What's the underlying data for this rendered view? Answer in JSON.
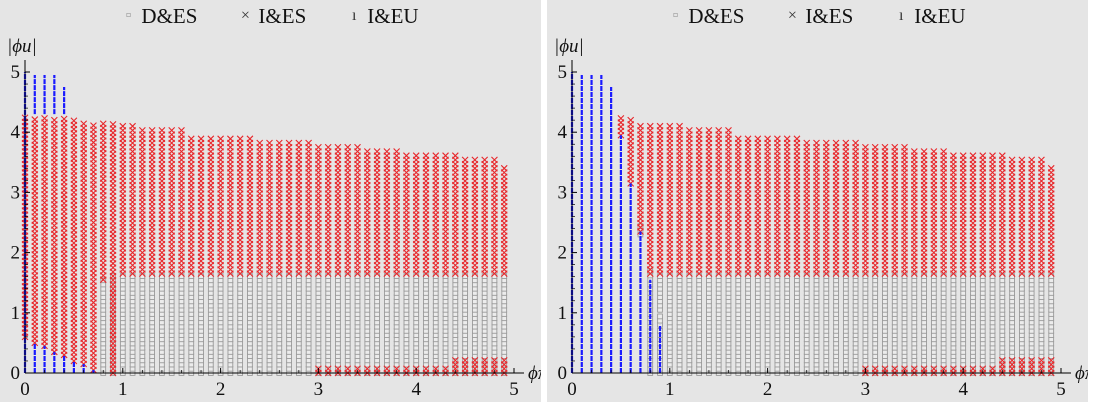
{
  "legend": {
    "items": [
      {
        "label": "D&ES",
        "symbol": "square",
        "color": "#9a9a9a"
      },
      {
        "label": "I&ES",
        "symbol": "cross",
        "color": "#e8262a"
      },
      {
        "label": "I&EU",
        "symbol": "vbar",
        "color": "#1a1aff"
      }
    ]
  },
  "axes": {
    "ylabel": "|ϕu|",
    "xlabel": "ϕπ",
    "xticks": [
      "0",
      "1",
      "2",
      "3",
      "4",
      "5"
    ],
    "yticks": [
      "0",
      "1",
      "2",
      "3",
      "4",
      "5"
    ]
  },
  "colors": {
    "background": "#e5e5e5",
    "DES": "#9a9a9a",
    "IES": "#e8262a",
    "IEU": "#1a1aff"
  },
  "chart_data": [
    {
      "type": "scatter",
      "xlabel": "ϕπ",
      "ylabel": "|ϕu|",
      "xlim": [
        0,
        5
      ],
      "ylim": [
        0,
        5
      ],
      "grid": false,
      "legend_position": "top",
      "x_grid": [
        0,
        0.1,
        0.2,
        0.3,
        0.4,
        0.5,
        0.6,
        0.7,
        0.8,
        0.9,
        1.0,
        1.1,
        1.2,
        1.3,
        1.4,
        1.5,
        1.6,
        1.7,
        1.8,
        1.9,
        2.0,
        2.1,
        2.2,
        2.3,
        2.4,
        2.5,
        2.6,
        2.7,
        2.8,
        2.9,
        3.0,
        3.1,
        3.2,
        3.3,
        3.4,
        3.5,
        3.6,
        3.7,
        3.8,
        3.9,
        4.0,
        4.1,
        4.2,
        4.3,
        4.4,
        4.5,
        4.6,
        4.7,
        4.8,
        4.9
      ],
      "series": [
        {
          "name": "D&ES",
          "symbol": "square",
          "columns": [
            {
              "x": 0.8,
              "y": [
                0,
                1.55
              ]
            },
            {
              "x": 0.9,
              "y": [
                0,
                1.65
              ]
            },
            {
              "x_from": 1.0,
              "x_to": 4.9,
              "y": [
                0,
                1.65
              ]
            }
          ]
        },
        {
          "name": "I&ES",
          "symbol": "cross",
          "columns": [
            {
              "x": 0.0,
              "y": [
                0.6,
                4.3
              ]
            },
            {
              "x": 0.1,
              "y": [
                0.5,
                4.25
              ]
            },
            {
              "x": 0.2,
              "y": [
                0.45,
                4.25
              ]
            },
            {
              "x": 0.3,
              "y": [
                0.35,
                4.25
              ]
            },
            {
              "x": 0.4,
              "y": [
                0.3,
                4.25
              ]
            },
            {
              "x": 0.5,
              "y": [
                0.2,
                4.2
              ]
            },
            {
              "x": 0.6,
              "y": [
                0.15,
                4.2
              ]
            },
            {
              "x": 0.7,
              "y": [
                0.05,
                4.15
              ]
            },
            {
              "x": 0.8,
              "y": [
                1.55,
                4.15
              ]
            },
            {
              "x": 0.9,
              "y": [
                0.0,
                4.15
              ]
            },
            {
              "x_from": 1.0,
              "x_to": 1.1,
              "y": [
                1.65,
                4.15
              ]
            },
            {
              "x_from": 1.2,
              "x_to": 1.6,
              "y": [
                1.65,
                4.05
              ]
            },
            {
              "x_from": 1.7,
              "x_to": 2.3,
              "y": [
                1.65,
                3.95
              ]
            },
            {
              "x_from": 2.4,
              "x_to": 2.9,
              "y": [
                1.65,
                3.85
              ]
            },
            {
              "x_from": 3.0,
              "x_to": 3.4,
              "y": [
                1.65,
                3.75
              ]
            },
            {
              "x_from": 3.5,
              "x_to": 3.8,
              "y": [
                1.65,
                3.7
              ]
            },
            {
              "x_from": 3.9,
              "x_to": 4.4,
              "y": [
                1.65,
                3.65
              ]
            },
            {
              "x_from": 4.5,
              "x_to": 4.8,
              "y": [
                1.65,
                3.55
              ]
            },
            {
              "x": 4.9,
              "y": [
                1.65,
                3.45
              ]
            },
            {
              "x_from": 3.0,
              "x_to": 4.3,
              "y": [
                0.0,
                0.1
              ]
            },
            {
              "x_from": 4.4,
              "x_to": 4.9,
              "y": [
                0.0,
                0.25
              ]
            }
          ]
        },
        {
          "name": "I&EU",
          "symbol": "vbar",
          "columns": [
            {
              "x": 0.0,
              "y": [
                0.0,
                5.0
              ]
            },
            {
              "x": 0.1,
              "y": [
                0.0,
                0.5
              ]
            },
            {
              "x": 0.1,
              "y": [
                4.3,
                4.95
              ]
            },
            {
              "x": 0.2,
              "y": [
                0.0,
                0.45
              ]
            },
            {
              "x": 0.2,
              "y": [
                4.3,
                4.95
              ]
            },
            {
              "x": 0.3,
              "y": [
                0.0,
                0.35
              ]
            },
            {
              "x": 0.3,
              "y": [
                4.3,
                4.95
              ]
            },
            {
              "x": 0.4,
              "y": [
                0.0,
                0.3
              ]
            },
            {
              "x": 0.4,
              "y": [
                4.3,
                4.75
              ]
            },
            {
              "x": 0.5,
              "y": [
                0.0,
                0.2
              ]
            },
            {
              "x": 0.6,
              "y": [
                0.0,
                0.15
              ]
            },
            {
              "x": 0.7,
              "y": [
                0.0,
                0.05
              ]
            }
          ]
        }
      ]
    },
    {
      "type": "scatter",
      "xlabel": "ϕπ",
      "ylabel": "|ϕu|",
      "xlim": [
        0,
        5
      ],
      "ylim": [
        0,
        5
      ],
      "grid": false,
      "legend_position": "top",
      "x_grid": [
        0,
        0.1,
        0.2,
        0.3,
        0.4,
        0.5,
        0.6,
        0.7,
        0.8,
        0.9,
        1.0,
        1.1,
        1.2,
        1.3,
        1.4,
        1.5,
        1.6,
        1.7,
        1.8,
        1.9,
        2.0,
        2.1,
        2.2,
        2.3,
        2.4,
        2.5,
        2.6,
        2.7,
        2.8,
        2.9,
        3.0,
        3.1,
        3.2,
        3.3,
        3.4,
        3.5,
        3.6,
        3.7,
        3.8,
        3.9,
        4.0,
        4.1,
        4.2,
        4.3,
        4.4,
        4.5,
        4.6,
        4.7,
        4.8,
        4.9
      ],
      "series": [
        {
          "name": "D&ES",
          "symbol": "square",
          "columns": [
            {
              "x": 0.7,
              "y": [
                2.3,
                2.45
              ]
            },
            {
              "x": 0.8,
              "y": [
                1.55,
                1.7
              ]
            },
            {
              "x": 0.9,
              "y": [
                0.8,
                1.0
              ]
            },
            {
              "x": 0.8,
              "y": [
                0,
                1.5
              ]
            },
            {
              "x": 0.9,
              "y": [
                0,
                0.75
              ]
            },
            {
              "x_from": 1.0,
              "x_to": 4.9,
              "y": [
                0,
                1.65
              ]
            },
            {
              "x": 0.9,
              "y": [
                1.05,
                1.65
              ]
            }
          ]
        },
        {
          "name": "I&ES",
          "symbol": "cross",
          "columns": [
            {
              "x": 0.5,
              "y": [
                3.95,
                4.25
              ]
            },
            {
              "x": 0.6,
              "y": [
                3.15,
                4.25
              ]
            },
            {
              "x": 0.7,
              "y": [
                2.35,
                4.15
              ]
            },
            {
              "x": 0.8,
              "y": [
                1.65,
                4.15
              ]
            },
            {
              "x": 0.9,
              "y": [
                1.65,
                4.15
              ]
            },
            {
              "x_from": 1.0,
              "x_to": 1.1,
              "y": [
                1.65,
                4.15
              ]
            },
            {
              "x_from": 1.2,
              "x_to": 1.6,
              "y": [
                1.65,
                4.05
              ]
            },
            {
              "x_from": 1.7,
              "x_to": 2.3,
              "y": [
                1.65,
                3.95
              ]
            },
            {
              "x_from": 2.4,
              "x_to": 2.9,
              "y": [
                1.65,
                3.85
              ]
            },
            {
              "x_from": 3.0,
              "x_to": 3.4,
              "y": [
                1.65,
                3.75
              ]
            },
            {
              "x_from": 3.5,
              "x_to": 3.8,
              "y": [
                1.65,
                3.7
              ]
            },
            {
              "x_from": 3.9,
              "x_to": 4.4,
              "y": [
                1.65,
                3.65
              ]
            },
            {
              "x_from": 4.5,
              "x_to": 4.8,
              "y": [
                1.65,
                3.55
              ]
            },
            {
              "x": 4.9,
              "y": [
                1.65,
                3.45
              ]
            },
            {
              "x_from": 3.0,
              "x_to": 4.3,
              "y": [
                0.0,
                0.1
              ]
            },
            {
              "x_from": 4.4,
              "x_to": 4.9,
              "y": [
                0.0,
                0.25
              ]
            }
          ]
        },
        {
          "name": "I&EU",
          "symbol": "vbar",
          "columns": [
            {
              "x": 0.0,
              "y": [
                0.0,
                5.0
              ]
            },
            {
              "x": 0.1,
              "y": [
                0.0,
                4.95
              ]
            },
            {
              "x": 0.2,
              "y": [
                0.0,
                4.95
              ]
            },
            {
              "x": 0.3,
              "y": [
                0.0,
                4.95
              ]
            },
            {
              "x": 0.4,
              "y": [
                0.0,
                4.75
              ]
            },
            {
              "x": 0.5,
              "y": [
                0.0,
                3.95
              ]
            },
            {
              "x": 0.6,
              "y": [
                0.0,
                3.15
              ]
            },
            {
              "x": 0.7,
              "y": [
                0.0,
                2.35
              ]
            },
            {
              "x": 0.8,
              "y": [
                0.0,
                1.55
              ]
            },
            {
              "x": 0.9,
              "y": [
                0.0,
                0.8
              ]
            }
          ]
        }
      ]
    }
  ]
}
